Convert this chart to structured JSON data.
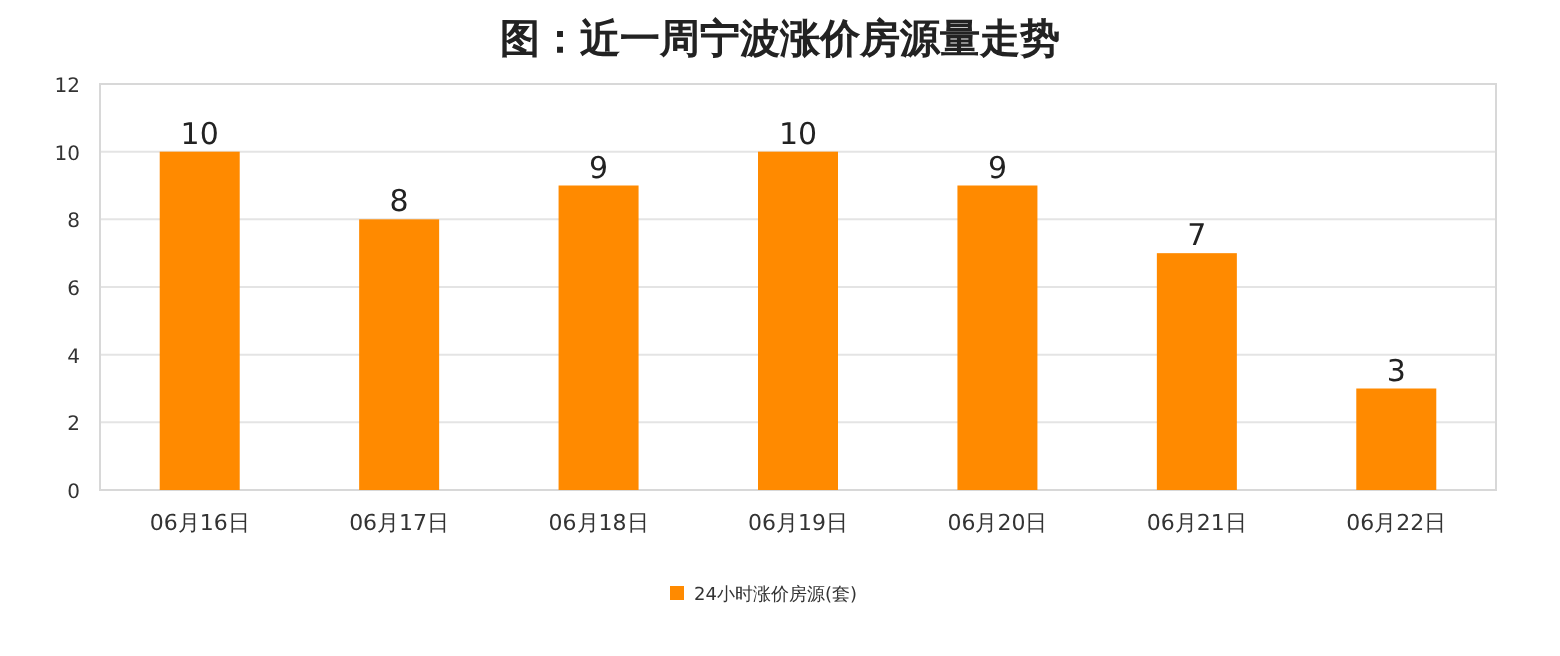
{
  "chart_data": {
    "type": "bar",
    "title": "图：近一周宁波涨价房源量走势",
    "categories": [
      "06月16日",
      "06月17日",
      "06月18日",
      "06月19日",
      "06月20日",
      "06月21日",
      "06月22日"
    ],
    "series": [
      {
        "name": "24小时涨价房源(套)",
        "color": "#ff8a00",
        "values": [
          10,
          8,
          9,
          10,
          9,
          7,
          3
        ]
      }
    ],
    "ylim": [
      0,
      12
    ],
    "yticks": [
      0,
      2,
      4,
      6,
      8,
      10,
      12
    ],
    "grid": "y",
    "legend": "bottom",
    "data_labels": true
  }
}
